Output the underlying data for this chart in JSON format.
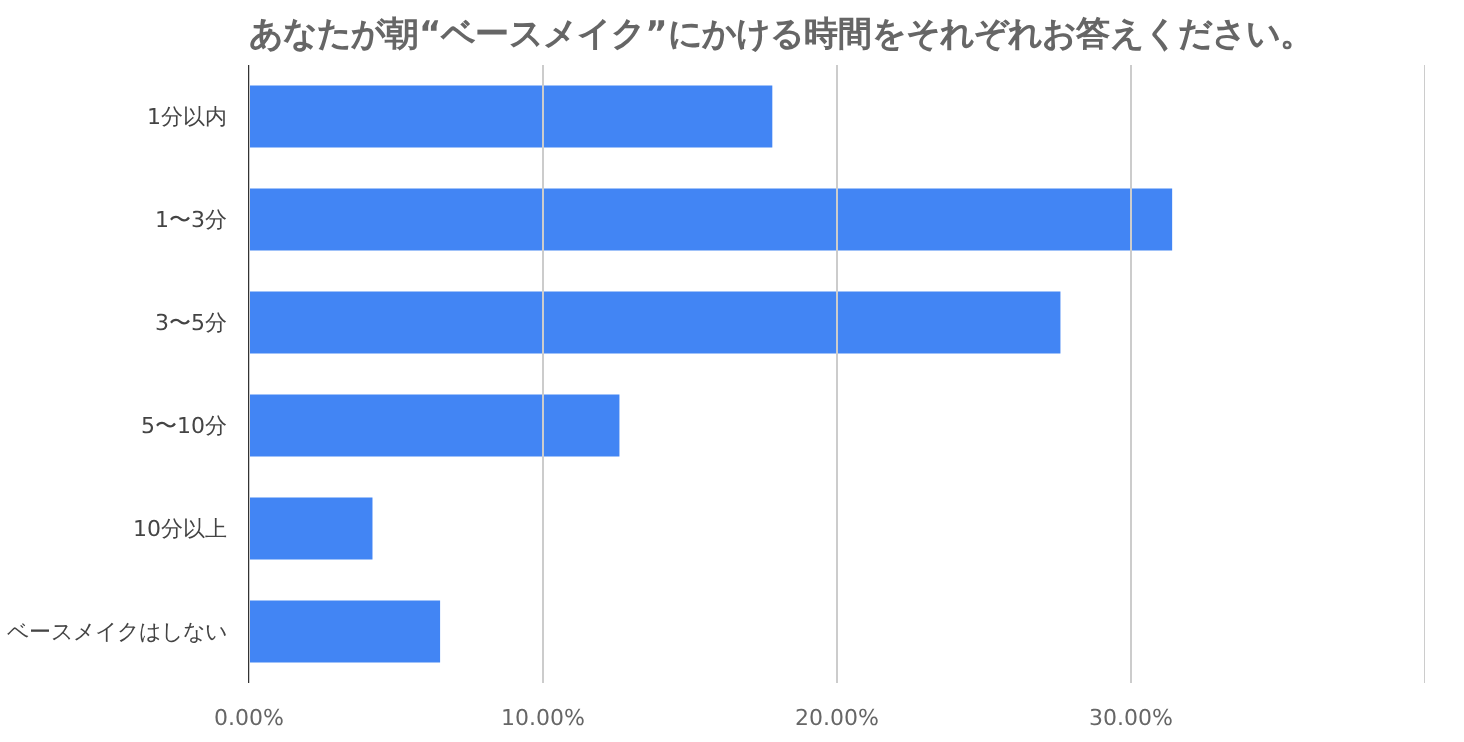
{
  "chart_data": {
    "type": "bar",
    "orientation": "horizontal",
    "title": "あなたが朝“ベースメイク”にかける時間をそれぞれお答えください。",
    "categories": [
      "1分以内",
      "1〜3分",
      "3〜5分",
      "5〜10分",
      "10分以上",
      "ベースメイクはしない"
    ],
    "values": [
      17.8,
      31.4,
      27.6,
      12.6,
      4.2,
      6.5
    ],
    "color": "#4285f4",
    "xlim": [
      0,
      40
    ],
    "xticks": [
      {
        "value": 0,
        "label": "0.00%"
      },
      {
        "value": 10,
        "label": "10.00%"
      },
      {
        "value": 20,
        "label": "20.00%"
      },
      {
        "value": 30,
        "label": "30.00%"
      },
      {
        "value": 40,
        "label": null
      }
    ],
    "grid": "x"
  }
}
